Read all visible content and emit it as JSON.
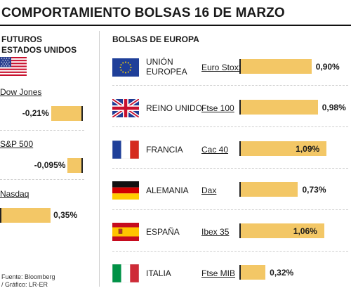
{
  "title": "COMPORTAMIENTO BOLSAS 16 DE MARZO",
  "us_section": {
    "heading_line1": "FUTUROS",
    "heading_line2": "ESTADOS UNIDOS",
    "flag_icon": "us-flag-icon"
  },
  "europe_section": {
    "heading": "BOLSAS DE EUROPA"
  },
  "source": {
    "line1": "Fuente: Bloomberg",
    "line2": "/ Gráfico: LR-ER"
  },
  "colors": {
    "bar": "#f3c766",
    "text": "#1a1a1a"
  },
  "chart_data": [
    {
      "type": "bar",
      "title": "FUTUROS ESTADOS UNIDOS",
      "categories": [
        "Dow Jones",
        "S&P 500",
        "Nasdaq"
      ],
      "values": [
        -0.21,
        -0.095,
        0.35
      ],
      "labels": [
        "-0,21%",
        "-0,095%",
        "0,35%"
      ],
      "unit": "%"
    },
    {
      "type": "bar",
      "title": "BOLSAS DE EUROPA",
      "categories": [
        "UNIÓN EUROPEA",
        "REINO UNIDO",
        "FRANCIA",
        "ALEMANIA",
        "ESPAÑA",
        "ITALIA"
      ],
      "indices": [
        "Euro Stoxx",
        "Ftse 100",
        "Cac 40",
        "Dax",
        "Ibex 35",
        "Ftse MIB"
      ],
      "values": [
        0.9,
        0.98,
        1.09,
        0.73,
        1.06,
        0.32
      ],
      "labels": [
        "0,90%",
        "0,98%",
        "1,09%",
        "0,73%",
        "1,06%",
        "0,32%"
      ],
      "flags": [
        "eu-flag-icon",
        "uk-flag-icon",
        "france-flag-icon",
        "germany-flag-icon",
        "spain-flag-icon",
        "italy-flag-icon"
      ],
      "unit": "%"
    }
  ]
}
